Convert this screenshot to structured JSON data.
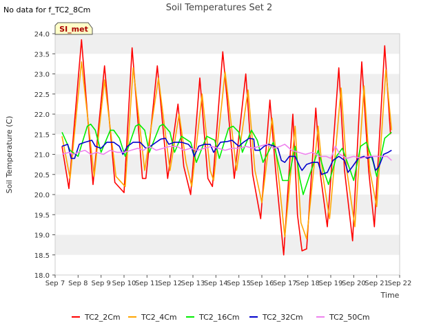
{
  "note": "No data for f_TC2_8Cm",
  "site_label": "SI_met",
  "chart_data": {
    "type": "line",
    "title": "Soil Temperatures Set 2",
    "xlabel": "Time",
    "ylabel": "Soil Temperature (C)",
    "ylim": [
      18.0,
      24.0
    ],
    "xlim": [
      7,
      22
    ],
    "x_tick_values": [
      7,
      8,
      9,
      10,
      11,
      12,
      13,
      14,
      15,
      16,
      17,
      18,
      19,
      20,
      21,
      22
    ],
    "x_tick_labels": [
      "Sep 7",
      "Sep 8",
      "Sep 9",
      "Sep 10",
      "Sep 11",
      "Sep 12",
      "Sep 13",
      "Sep 14",
      "Sep 15",
      "Sep 16",
      "Sep 17",
      "Sep 18",
      "Sep 19",
      "Sep 20",
      "Sep 21",
      "Sep 22"
    ],
    "y_ticks": [
      "18.0",
      "18.5",
      "19.0",
      "19.5",
      "20.0",
      "20.5",
      "21.0",
      "21.5",
      "22.0",
      "22.5",
      "23.0",
      "23.5",
      "24.0"
    ],
    "grid": "horizontal bands",
    "legend_position": "bottom",
    "series": [
      {
        "name": "TC2_2Cm",
        "color": "#ff0000",
        "points": [
          [
            7.3,
            21.2
          ],
          [
            7.6,
            20.15
          ],
          [
            8.15,
            23.85
          ],
          [
            8.65,
            20.25
          ],
          [
            9.15,
            23.2
          ],
          [
            9.6,
            20.3
          ],
          [
            10.0,
            20.05
          ],
          [
            10.35,
            23.65
          ],
          [
            10.8,
            20.4
          ],
          [
            10.95,
            20.4
          ],
          [
            11.45,
            23.2
          ],
          [
            11.9,
            20.4
          ],
          [
            12.35,
            22.25
          ],
          [
            12.6,
            20.7
          ],
          [
            12.9,
            20.0
          ],
          [
            13.3,
            22.9
          ],
          [
            13.65,
            20.4
          ],
          [
            13.85,
            20.2
          ],
          [
            14.3,
            23.55
          ],
          [
            14.8,
            20.4
          ],
          [
            15.3,
            23.0
          ],
          [
            15.6,
            20.5
          ],
          [
            15.95,
            19.4
          ],
          [
            16.35,
            22.35
          ],
          [
            16.6,
            20.6
          ],
          [
            16.95,
            18.5
          ],
          [
            17.35,
            22.0
          ],
          [
            17.55,
            19.5
          ],
          [
            17.75,
            18.6
          ],
          [
            17.95,
            18.65
          ],
          [
            18.35,
            22.15
          ],
          [
            18.55,
            20.5
          ],
          [
            18.85,
            19.2
          ],
          [
            19.35,
            23.15
          ],
          [
            19.6,
            20.6
          ],
          [
            19.95,
            18.85
          ],
          [
            20.35,
            23.3
          ],
          [
            20.65,
            20.6
          ],
          [
            20.9,
            19.2
          ],
          [
            21.35,
            23.7
          ],
          [
            21.6,
            21.5
          ]
        ]
      },
      {
        "name": "TC2_4Cm",
        "color": "#ffa500",
        "points": [
          [
            7.3,
            21.45
          ],
          [
            7.65,
            20.4
          ],
          [
            8.15,
            23.3
          ],
          [
            8.7,
            20.45
          ],
          [
            9.15,
            22.85
          ],
          [
            9.65,
            20.45
          ],
          [
            10.05,
            20.2
          ],
          [
            10.4,
            23.15
          ],
          [
            10.9,
            20.6
          ],
          [
            11.5,
            22.9
          ],
          [
            12.0,
            20.6
          ],
          [
            12.4,
            22.0
          ],
          [
            12.7,
            20.8
          ],
          [
            12.95,
            20.2
          ],
          [
            13.4,
            22.5
          ],
          [
            13.75,
            20.6
          ],
          [
            13.9,
            20.35
          ],
          [
            14.4,
            23.05
          ],
          [
            14.9,
            20.6
          ],
          [
            15.4,
            22.6
          ],
          [
            15.7,
            20.6
          ],
          [
            16.0,
            19.8
          ],
          [
            16.45,
            21.9
          ],
          [
            16.7,
            20.6
          ],
          [
            17.0,
            18.95
          ],
          [
            17.45,
            21.7
          ],
          [
            17.7,
            19.3
          ],
          [
            17.95,
            18.9
          ],
          [
            18.45,
            21.7
          ],
          [
            18.65,
            20.5
          ],
          [
            18.95,
            19.4
          ],
          [
            19.45,
            22.65
          ],
          [
            19.7,
            20.6
          ],
          [
            20.05,
            19.2
          ],
          [
            20.45,
            22.7
          ],
          [
            20.7,
            20.6
          ],
          [
            21.0,
            19.7
          ],
          [
            21.4,
            23.1
          ],
          [
            21.65,
            21.6
          ]
        ]
      },
      {
        "name": "TC2_16Cm",
        "color": "#00ee00",
        "points": [
          [
            7.3,
            21.55
          ],
          [
            7.65,
            21.1
          ],
          [
            8.0,
            20.95
          ],
          [
            8.4,
            21.7
          ],
          [
            8.55,
            21.75
          ],
          [
            8.75,
            21.6
          ],
          [
            9.0,
            21.05
          ],
          [
            9.4,
            21.6
          ],
          [
            9.55,
            21.6
          ],
          [
            9.8,
            21.4
          ],
          [
            10.05,
            20.95
          ],
          [
            10.5,
            21.7
          ],
          [
            10.65,
            21.75
          ],
          [
            10.9,
            21.6
          ],
          [
            11.1,
            21.05
          ],
          [
            11.55,
            21.7
          ],
          [
            11.7,
            21.75
          ],
          [
            12.0,
            21.55
          ],
          [
            12.2,
            21.05
          ],
          [
            12.5,
            21.45
          ],
          [
            12.9,
            21.3
          ],
          [
            13.15,
            20.8
          ],
          [
            13.6,
            21.45
          ],
          [
            13.95,
            21.35
          ],
          [
            14.15,
            20.9
          ],
          [
            14.55,
            21.65
          ],
          [
            14.75,
            21.7
          ],
          [
            15.0,
            21.55
          ],
          [
            15.15,
            21.05
          ],
          [
            15.55,
            21.6
          ],
          [
            15.8,
            21.35
          ],
          [
            16.05,
            20.8
          ],
          [
            16.5,
            21.3
          ],
          [
            16.9,
            20.35
          ],
          [
            17.15,
            20.35
          ],
          [
            17.45,
            21.2
          ],
          [
            17.65,
            20.4
          ],
          [
            17.8,
            20.0
          ],
          [
            18.15,
            20.6
          ],
          [
            18.45,
            21.1
          ],
          [
            18.75,
            20.5
          ],
          [
            18.9,
            20.25
          ],
          [
            19.25,
            20.95
          ],
          [
            19.5,
            21.15
          ],
          [
            19.85,
            20.6
          ],
          [
            20.0,
            20.35
          ],
          [
            20.3,
            21.2
          ],
          [
            20.55,
            21.3
          ],
          [
            20.85,
            20.8
          ],
          [
            21.0,
            20.45
          ],
          [
            21.35,
            21.4
          ],
          [
            21.65,
            21.55
          ]
        ]
      },
      {
        "name": "TC2_32Cm",
        "color": "#0000cc",
        "points": [
          [
            7.3,
            21.2
          ],
          [
            7.55,
            21.25
          ],
          [
            7.7,
            20.9
          ],
          [
            7.85,
            20.9
          ],
          [
            8.05,
            21.25
          ],
          [
            8.3,
            21.3
          ],
          [
            8.6,
            21.35
          ],
          [
            8.75,
            21.2
          ],
          [
            9.0,
            21.15
          ],
          [
            9.25,
            21.3
          ],
          [
            9.55,
            21.3
          ],
          [
            9.8,
            21.2
          ],
          [
            9.95,
            21.0
          ],
          [
            10.15,
            21.2
          ],
          [
            10.4,
            21.3
          ],
          [
            10.7,
            21.3
          ],
          [
            10.95,
            21.15
          ],
          [
            11.15,
            21.2
          ],
          [
            11.4,
            21.3
          ],
          [
            11.6,
            21.38
          ],
          [
            11.8,
            21.4
          ],
          [
            11.95,
            21.25
          ],
          [
            12.2,
            21.3
          ],
          [
            12.5,
            21.3
          ],
          [
            12.8,
            21.25
          ],
          [
            12.95,
            21.15
          ],
          [
            13.05,
            20.95
          ],
          [
            13.25,
            21.2
          ],
          [
            13.5,
            21.25
          ],
          [
            13.75,
            21.25
          ],
          [
            13.9,
            21.05
          ],
          [
            14.2,
            21.3
          ],
          [
            14.5,
            21.32
          ],
          [
            14.7,
            21.35
          ],
          [
            14.9,
            21.25
          ],
          [
            15.0,
            21.2
          ],
          [
            15.2,
            21.3
          ],
          [
            15.45,
            21.4
          ],
          [
            15.65,
            21.38
          ],
          [
            15.7,
            21.1
          ],
          [
            15.9,
            21.1
          ],
          [
            16.1,
            21.2
          ],
          [
            16.3,
            21.25
          ],
          [
            16.55,
            21.2
          ],
          [
            16.7,
            21.15
          ],
          [
            16.85,
            20.85
          ],
          [
            17.0,
            20.8
          ],
          [
            17.2,
            20.95
          ],
          [
            17.45,
            20.95
          ],
          [
            17.65,
            20.7
          ],
          [
            17.75,
            20.6
          ],
          [
            17.95,
            20.75
          ],
          [
            18.2,
            20.8
          ],
          [
            18.45,
            20.8
          ],
          [
            18.6,
            20.5
          ],
          [
            18.85,
            20.55
          ],
          [
            19.1,
            20.85
          ],
          [
            19.35,
            20.95
          ],
          [
            19.6,
            20.85
          ],
          [
            19.75,
            20.55
          ],
          [
            19.95,
            20.7
          ],
          [
            20.2,
            20.9
          ],
          [
            20.45,
            20.95
          ],
          [
            20.6,
            20.9
          ],
          [
            20.8,
            20.95
          ],
          [
            20.95,
            20.6
          ],
          [
            21.1,
            20.7
          ],
          [
            21.3,
            21.0
          ],
          [
            21.5,
            21.05
          ],
          [
            21.65,
            21.1
          ]
        ]
      },
      {
        "name": "TC2_50Cm",
        "color": "#ee82ee",
        "points": [
          [
            7.3,
            21.0
          ],
          [
            7.6,
            21.05
          ],
          [
            7.8,
            21.0
          ],
          [
            8.0,
            21.05
          ],
          [
            8.3,
            21.1
          ],
          [
            8.55,
            21.0
          ],
          [
            8.8,
            21.05
          ],
          [
            9.1,
            21.0
          ],
          [
            9.4,
            21.1
          ],
          [
            9.7,
            21.05
          ],
          [
            10.0,
            21.05
          ],
          [
            10.3,
            21.1
          ],
          [
            10.6,
            21.15
          ],
          [
            10.85,
            21.1
          ],
          [
            11.1,
            21.2
          ],
          [
            11.4,
            21.1
          ],
          [
            11.7,
            21.15
          ],
          [
            12.0,
            21.2
          ],
          [
            12.3,
            21.2
          ],
          [
            12.6,
            21.1
          ],
          [
            12.9,
            21.15
          ],
          [
            13.2,
            21.1
          ],
          [
            13.5,
            21.15
          ],
          [
            13.8,
            21.2
          ],
          [
            14.1,
            21.15
          ],
          [
            14.4,
            21.1
          ],
          [
            14.7,
            21.15
          ],
          [
            15.0,
            21.15
          ],
          [
            15.3,
            21.2
          ],
          [
            15.6,
            21.15
          ],
          [
            15.9,
            21.2
          ],
          [
            16.2,
            21.25
          ],
          [
            16.5,
            21.15
          ],
          [
            16.8,
            21.2
          ],
          [
            17.0,
            21.25
          ],
          [
            17.3,
            21.1
          ],
          [
            17.6,
            21.05
          ],
          [
            17.9,
            21.0
          ],
          [
            18.2,
            21.05
          ],
          [
            18.5,
            20.95
          ],
          [
            18.8,
            20.95
          ],
          [
            19.0,
            20.9
          ],
          [
            19.2,
            21.2
          ],
          [
            19.4,
            21.0
          ],
          [
            19.7,
            20.9
          ],
          [
            20.0,
            20.95
          ],
          [
            20.3,
            20.9
          ],
          [
            20.6,
            20.95
          ],
          [
            20.9,
            20.95
          ],
          [
            21.2,
            20.95
          ],
          [
            21.45,
            20.95
          ],
          [
            21.65,
            20.85
          ]
        ]
      }
    ]
  }
}
